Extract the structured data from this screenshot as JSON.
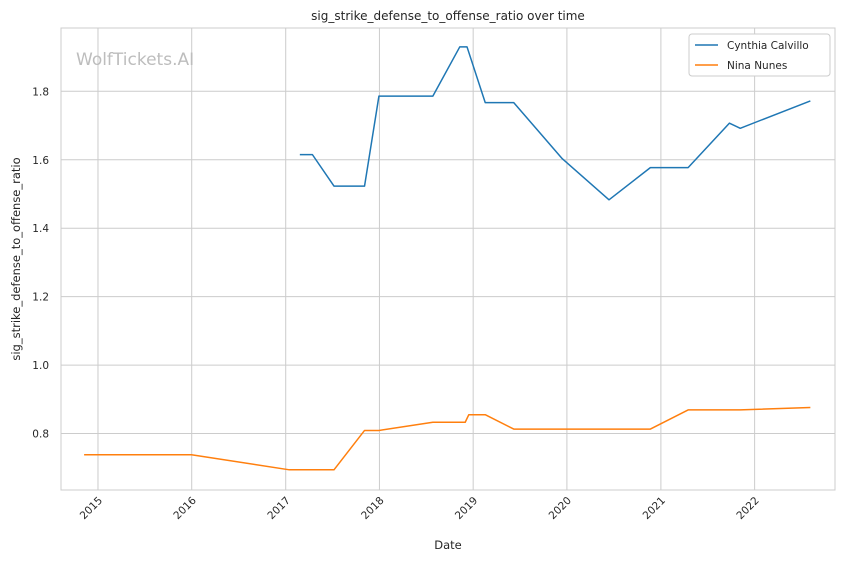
{
  "watermark": "WolfTickets.AI",
  "chart_data": {
    "type": "line",
    "title": "sig_strike_defense_to_offense_ratio over time",
    "xlabel": "Date",
    "ylabel": "sig_strike_defense_to_offense_ratio",
    "xlim": [
      "2014-08-10",
      "2022-11-10"
    ],
    "ylim": [
      0.635,
      1.985
    ],
    "x_ticks": [
      "2015",
      "2016",
      "2017",
      "2018",
      "2019",
      "2020",
      "2021",
      "2022"
    ],
    "y_ticks": [
      0.8,
      1.0,
      1.2,
      1.4,
      1.6,
      1.8
    ],
    "grid": true,
    "legend_position": "top-right",
    "series": [
      {
        "name": "Cynthia Calvillo",
        "color": "#1f77b4",
        "points": [
          [
            "2017-02-25",
            1.615
          ],
          [
            "2017-04-15",
            1.615
          ],
          [
            "2017-07-08",
            1.523
          ],
          [
            "2017-11-04",
            1.523
          ],
          [
            "2017-12-30",
            1.786
          ],
          [
            "2018-07-28",
            1.786
          ],
          [
            "2018-11-10",
            1.93
          ],
          [
            "2018-12-08",
            1.93
          ],
          [
            "2019-02-17",
            1.767
          ],
          [
            "2019-06-08",
            1.767
          ],
          [
            "2019-12-14",
            1.603
          ],
          [
            "2020-06-13",
            1.483
          ],
          [
            "2020-11-21",
            1.577
          ],
          [
            "2021-04-17",
            1.577
          ],
          [
            "2021-09-25",
            1.707
          ],
          [
            "2021-11-06",
            1.692
          ],
          [
            "2022-08-06",
            1.772
          ]
        ]
      },
      {
        "name": "Nina Nunes",
        "color": "#ff7f0e",
        "points": [
          [
            "2014-11-08",
            0.738
          ],
          [
            "2015-12-31",
            0.738
          ],
          [
            "2017-01-15",
            0.694
          ],
          [
            "2017-07-08",
            0.694
          ],
          [
            "2017-11-04",
            0.809
          ],
          [
            "2017-12-30",
            0.809
          ],
          [
            "2018-07-28",
            0.833
          ],
          [
            "2018-12-01",
            0.833
          ],
          [
            "2018-12-15",
            0.855
          ],
          [
            "2019-02-17",
            0.855
          ],
          [
            "2019-06-08",
            0.813
          ],
          [
            "2020-11-21",
            0.813
          ],
          [
            "2021-04-17",
            0.869
          ],
          [
            "2021-11-06",
            0.869
          ],
          [
            "2022-08-06",
            0.876
          ]
        ]
      }
    ]
  }
}
